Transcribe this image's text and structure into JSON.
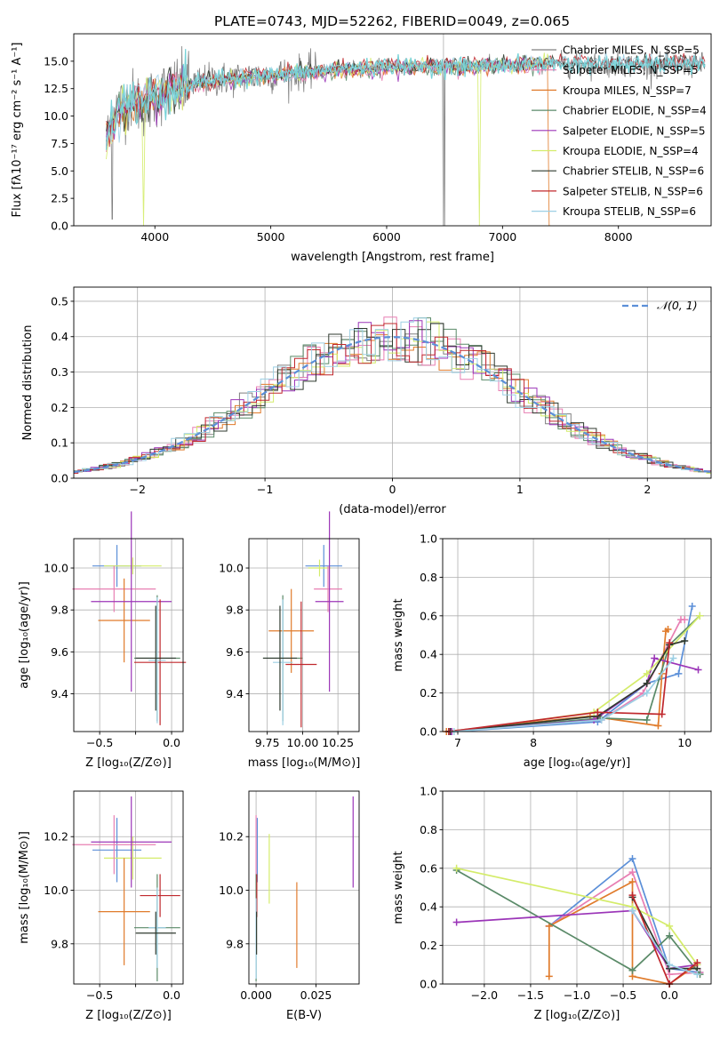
{
  "figure": {
    "title": "PLATE=0743, MJD=52262, FIBERID=0049, z=0.065"
  },
  "colors": [
    "#808080",
    "#e87fb3",
    "#e07b2b",
    "#5a8a68",
    "#9b35b8",
    "#d4ec6a",
    "#2f3a2f",
    "#c0282d",
    "#9ccfe4"
  ],
  "chart_data": [
    {
      "id": "spectrum",
      "type": "line",
      "xlabel": "wavelength [Angstrom, rest frame]",
      "ylabel": "Flux [fλ10⁻¹⁷ erg cm⁻² s⁻¹ A⁻¹]",
      "xlim": [
        3300,
        8800
      ],
      "ylim": [
        0,
        17.5
      ],
      "xticks": [
        4000,
        5000,
        6000,
        7000,
        8000
      ],
      "yticks": [
        0.0,
        2.5,
        5.0,
        7.5,
        10.0,
        12.5,
        15.0
      ],
      "grid": false,
      "legend_position": "top-right",
      "series": [
        {
          "name": "Chabrier MILES, N_SSP=5",
          "color": "#808080"
        },
        {
          "name": "Salpeter MILES, N_SSP=5",
          "color": "#e87fb3"
        },
        {
          "name": "Kroupa MILES, N_SSP=7",
          "color": "#e07b2b"
        },
        {
          "name": "Chabrier ELODIE, N_SSP=4",
          "color": "#5a8a68"
        },
        {
          "name": "Salpeter ELODIE, N_SSP=5",
          "color": "#9b35b8"
        },
        {
          "name": "Kroupa ELODIE, N_SSP=4",
          "color": "#d4ec6a"
        },
        {
          "name": "Chabrier STELIB, N_SSP=6",
          "color": "#2f3a2f"
        },
        {
          "name": "Salpeter STELIB, N_SSP=6",
          "color": "#c0282d"
        },
        {
          "name": "Kroupa STELIB, N_SSP=6",
          "color": "#9ccfe4"
        }
      ],
      "continuum": [
        [
          3580,
          7.5
        ],
        [
          3650,
          10.5
        ],
        [
          3800,
          11.5
        ],
        [
          3900,
          11.0
        ],
        [
          4000,
          11.8
        ],
        [
          4200,
          12.7
        ],
        [
          4500,
          13.3
        ],
        [
          5000,
          13.7
        ],
        [
          5500,
          14.2
        ],
        [
          6000,
          14.6
        ],
        [
          6500,
          14.5
        ],
        [
          7000,
          14.6
        ],
        [
          7500,
          14.7
        ],
        [
          8000,
          14.7
        ],
        [
          8300,
          14.6
        ],
        [
          8750,
          14.7
        ]
      ],
      "model_continuum": [
        [
          3580,
          7.5
        ],
        [
          3650,
          10.0
        ],
        [
          3800,
          11.3
        ],
        [
          4000,
          11.9
        ],
        [
          4300,
          12.8
        ],
        [
          4800,
          13.5
        ],
        [
          5500,
          14.1
        ],
        [
          6200,
          14.5
        ],
        [
          6800,
          14.5
        ],
        [
          7420,
          14.8
        ]
      ],
      "drops": [
        [
          3630,
          0.5
        ],
        [
          3900,
          0.0
        ],
        [
          6490,
          0.0
        ],
        [
          6500,
          0.0
        ],
        [
          6790,
          0.5
        ],
        [
          6800,
          0.0
        ],
        [
          7400,
          0.0
        ],
        [
          7420,
          0.0
        ]
      ]
    },
    {
      "id": "residuals",
      "type": "line",
      "xlabel": "(data-model)/error",
      "ylabel": "Normed distribution",
      "xlim": [
        -2.5,
        2.5
      ],
      "ylim": [
        0,
        0.54
      ],
      "xticks": [
        -2,
        -1,
        0,
        1,
        2
      ],
      "yticks": [
        0.0,
        0.1,
        0.2,
        0.3,
        0.4,
        0.5
      ],
      "grid": true,
      "legend_position": "top-right",
      "gaussian_label": "𝒩(0, 1)",
      "gaussian_color": "#5b8fd8",
      "bin_width": 0.1
    },
    {
      "id": "age-vs-Z",
      "type": "scatter",
      "xlabel": "Z [log₁₀(Z/Z⊙)]",
      "ylabel": "age  [log₁₀(age/yr)]",
      "xlim": [
        -0.68,
        0.08
      ],
      "ylim": [
        9.22,
        10.14
      ],
      "xticks": [
        -0.5,
        -0.25,
        0.0
      ],
      "xticklabels": [
        "−0.5",
        "",
        "0.0"
      ],
      "yticks": [
        9.4,
        9.6,
        9.8,
        10.0
      ],
      "grid": true,
      "points": [
        {
          "x": -0.38,
          "xerr": 0.17,
          "y": 10.01,
          "yerr": 0.1,
          "color": "#5b8fd8"
        },
        {
          "x": -0.27,
          "xerr": 0.2,
          "y": 10.01,
          "yerr": 0.04,
          "color": "#d4ec6a"
        },
        {
          "x": -0.4,
          "xerr": 0.29,
          "y": 9.9,
          "yerr": 0.11,
          "color": "#e87fb3"
        },
        {
          "x": -0.33,
          "xerr": 0.18,
          "y": 9.75,
          "yerr": 0.2,
          "color": "#e07b2b"
        },
        {
          "x": -0.28,
          "xerr": 0.28,
          "y": 9.84,
          "yerr": 0.43,
          "color": "#9b35b8"
        },
        {
          "x": -0.1,
          "xerr": 0.16,
          "y": 9.57,
          "yerr": 0.3,
          "color": "#5a8a68"
        },
        {
          "x": -0.08,
          "xerr": 0.18,
          "y": 9.55,
          "yerr": 0.3,
          "color": "#c0282d"
        },
        {
          "x": -0.1,
          "xerr": 0.06,
          "y": 9.56,
          "yerr": 0.3,
          "color": "#9ccfe4"
        },
        {
          "x": -0.11,
          "xerr": 0.14,
          "y": 9.57,
          "yerr": 0.25,
          "color": "#2f3a2f"
        }
      ]
    },
    {
      "id": "age-vs-mass",
      "type": "scatter",
      "xlabel": "mass [log₁₀(M/M⊙)]",
      "xlim": [
        9.62,
        10.4
      ],
      "ylim": [
        9.22,
        10.14
      ],
      "xticks": [
        9.75,
        10.0,
        10.25
      ],
      "xticklabels": [
        "9.75",
        "10.00",
        "10.25"
      ],
      "yticks": [
        9.4,
        9.6,
        9.8,
        10.0
      ],
      "grid": true,
      "points": [
        {
          "x": 10.15,
          "xerr": 0.13,
          "y": 10.01,
          "yerr": 0.1,
          "color": "#5b8fd8"
        },
        {
          "x": 10.12,
          "xerr": 0.08,
          "y": 10.0,
          "yerr": 0.04,
          "color": "#d4ec6a"
        },
        {
          "x": 10.18,
          "xerr": 0.1,
          "y": 9.9,
          "yerr": 0.11,
          "color": "#e87fb3"
        },
        {
          "x": 9.92,
          "xerr": 0.16,
          "y": 9.7,
          "yerr": 0.2,
          "color": "#e07b2b"
        },
        {
          "x": 10.19,
          "xerr": 0.1,
          "y": 9.84,
          "yerr": 0.43,
          "color": "#9b35b8"
        },
        {
          "x": 9.86,
          "xerr": 0.14,
          "y": 9.57,
          "yerr": 0.3,
          "color": "#5a8a68"
        },
        {
          "x": 9.99,
          "xerr": 0.11,
          "y": 9.54,
          "yerr": 0.3,
          "color": "#c0282d"
        },
        {
          "x": 9.86,
          "xerr": 0.07,
          "y": 9.55,
          "yerr": 0.3,
          "color": "#9ccfe4"
        },
        {
          "x": 9.84,
          "xerr": 0.12,
          "y": 9.57,
          "yerr": 0.25,
          "color": "#2f3a2f"
        }
      ]
    },
    {
      "id": "weight-vs-age",
      "type": "line",
      "xlabel": "age  [log₁₀(age/yr)]",
      "ylabel": "mass weight",
      "xlim": [
        6.8,
        10.35
      ],
      "ylim": [
        0,
        1.0
      ],
      "xticks": [
        7,
        8,
        9,
        10
      ],
      "yticks": [
        0.0,
        0.2,
        0.4,
        0.6,
        0.8,
        1.0
      ],
      "grid": true,
      "series": [
        {
          "color": "#5b8fd8",
          "x": [
            6.95,
            8.85,
            9.5,
            9.92,
            10.1
          ],
          "y": [
            0.0,
            0.05,
            0.25,
            0.3,
            0.65
          ]
        },
        {
          "color": "#e87fb3",
          "x": [
            6.9,
            8.9,
            9.45,
            9.95,
            10.0
          ],
          "y": [
            0.0,
            0.06,
            0.2,
            0.58,
            0.58
          ]
        },
        {
          "color": "#e07b2b",
          "x": [
            6.85,
            8.75,
            9.65,
            9.7,
            9.75,
            9.78
          ],
          "y": [
            0.0,
            0.08,
            0.03,
            0.3,
            0.52,
            0.53
          ]
        },
        {
          "color": "#5a8a68",
          "x": [
            6.88,
            8.9,
            9.5,
            9.8,
            10.2
          ],
          "y": [
            0.0,
            0.07,
            0.06,
            0.45,
            0.6
          ]
        },
        {
          "color": "#9b35b8",
          "x": [
            6.92,
            8.8,
            9.5,
            9.6,
            10.18
          ],
          "y": [
            0.0,
            0.06,
            0.25,
            0.38,
            0.32
          ]
        },
        {
          "color": "#d4ec6a",
          "x": [
            6.95,
            8.8,
            9.5,
            10.2
          ],
          "y": [
            0.0,
            0.1,
            0.3,
            0.6
          ]
        },
        {
          "color": "#2f3a2f",
          "x": [
            6.9,
            8.85,
            9.5,
            9.8,
            10.0
          ],
          "y": [
            0.0,
            0.08,
            0.25,
            0.45,
            0.47
          ]
        },
        {
          "color": "#c0282d",
          "x": [
            6.88,
            8.85,
            9.7,
            9.8
          ],
          "y": [
            0.0,
            0.1,
            0.09,
            0.46
          ]
        },
        {
          "color": "#9ccfe4",
          "x": [
            6.95,
            8.9,
            9.5,
            9.85
          ],
          "y": [
            0.0,
            0.06,
            0.2,
            0.38
          ]
        }
      ]
    },
    {
      "id": "mass-vs-Z",
      "type": "scatter",
      "xlabel": "Z [log₁₀(Z/Z⊙)]",
      "ylabel": "mass [log₁₀(M/M⊙)]",
      "xlim": [
        -0.68,
        0.08
      ],
      "ylim": [
        9.65,
        10.37
      ],
      "xticks": [
        -0.5,
        -0.25,
        0.0
      ],
      "xticklabels": [
        "−0.5",
        "",
        "0.0"
      ],
      "yticks": [
        9.8,
        10.0,
        10.2
      ],
      "grid": true,
      "points": [
        {
          "x": -0.38,
          "xerr": 0.17,
          "y": 10.15,
          "yerr": 0.12,
          "color": "#5b8fd8"
        },
        {
          "x": -0.27,
          "xerr": 0.2,
          "y": 10.12,
          "yerr": 0.08,
          "color": "#d4ec6a"
        },
        {
          "x": -0.4,
          "xerr": 0.29,
          "y": 10.17,
          "yerr": 0.11,
          "color": "#e87fb3"
        },
        {
          "x": -0.33,
          "xerr": 0.18,
          "y": 9.92,
          "yerr": 0.2,
          "color": "#e07b2b"
        },
        {
          "x": -0.28,
          "xerr": 0.28,
          "y": 10.18,
          "yerr": 0.17,
          "color": "#9b35b8"
        },
        {
          "x": -0.1,
          "xerr": 0.16,
          "y": 9.86,
          "yerr": 0.2,
          "color": "#5a8a68"
        },
        {
          "x": -0.08,
          "xerr": 0.14,
          "y": 9.98,
          "yerr": 0.08,
          "color": "#c0282d"
        },
        {
          "x": -0.1,
          "xerr": 0.06,
          "y": 9.86,
          "yerr": 0.15,
          "color": "#9ccfe4"
        },
        {
          "x": -0.11,
          "xerr": 0.14,
          "y": 9.84,
          "yerr": 0.08,
          "color": "#2f3a2f"
        }
      ]
    },
    {
      "id": "mass-vs-ebv",
      "type": "scatter",
      "xlabel": "E(B-V)",
      "xlim": [
        -0.003,
        0.043
      ],
      "ylim": [
        9.65,
        10.37
      ],
      "xticks": [
        0.0,
        0.025
      ],
      "xticklabels": [
        "0.000",
        "0.025"
      ],
      "yticks": [
        9.8,
        10.0,
        10.2
      ],
      "grid": true,
      "points": [
        {
          "x": 0.0005,
          "xerr": 0,
          "y": 10.15,
          "yerr": 0.12,
          "color": "#5b8fd8"
        },
        {
          "x": 0.0055,
          "xerr": 0,
          "y": 10.08,
          "yerr": 0.13,
          "color": "#d4ec6a"
        },
        {
          "x": 0.0,
          "xerr": 0,
          "y": 10.17,
          "yerr": 0.11,
          "color": "#e87fb3"
        },
        {
          "x": 0.017,
          "xerr": 0,
          "y": 9.87,
          "yerr": 0.16,
          "color": "#e07b2b"
        },
        {
          "x": 0.0405,
          "xerr": 0,
          "y": 10.18,
          "yerr": 0.17,
          "color": "#9b35b8"
        },
        {
          "x": 0.0,
          "xerr": 0,
          "y": 9.86,
          "yerr": 0.2,
          "color": "#5a8a68"
        },
        {
          "x": 0.0003,
          "xerr": 0,
          "y": 9.98,
          "yerr": 0.08,
          "color": "#c0282d"
        },
        {
          "x": 0.0,
          "xerr": 0,
          "y": 9.82,
          "yerr": 0.15,
          "color": "#9ccfe4"
        },
        {
          "x": 0.0002,
          "xerr": 0,
          "y": 9.84,
          "yerr": 0.08,
          "color": "#2f3a2f"
        }
      ]
    },
    {
      "id": "weight-vs-Z",
      "type": "line",
      "xlabel": "Z [log₁₀(Z/Z⊙)]",
      "ylabel": "mass weight",
      "xlim": [
        -2.45,
        0.45
      ],
      "ylim": [
        0,
        1.0
      ],
      "xticks": [
        -2.0,
        -1.5,
        -1.0,
        -0.5,
        0.0
      ],
      "xticklabels": [
        "−2.0",
        "−1.5",
        "−1.0",
        "−0.5",
        "0.0"
      ],
      "yticks": [
        0.0,
        0.2,
        0.4,
        0.6,
        0.8,
        1.0
      ],
      "grid": true,
      "series": [
        {
          "color": "#5b8fd8",
          "x": [
            -1.3,
            -0.4,
            0.0,
            0.33
          ],
          "y": [
            0.3,
            0.65,
            0.08,
            0.06
          ]
        },
        {
          "color": "#e87fb3",
          "x": [
            -1.3,
            -0.4,
            0.0,
            0.33
          ],
          "y": [
            0.3,
            0.58,
            0.05,
            0.06
          ]
        },
        {
          "color": "#e07b2b",
          "x": [
            -1.3,
            -1.3,
            -0.4,
            -0.4,
            0.0,
            0.3
          ],
          "y": [
            0.04,
            0.3,
            0.53,
            0.04,
            0.0,
            0.1
          ]
        },
        {
          "color": "#5a8a68",
          "x": [
            -2.3,
            -0.4,
            0.0,
            0.33
          ],
          "y": [
            0.59,
            0.07,
            0.25,
            0.05
          ]
        },
        {
          "color": "#9b35b8",
          "x": [
            -2.3,
            -0.4,
            0.0,
            0.3
          ],
          "y": [
            0.32,
            0.38,
            0.08,
            0.1
          ]
        },
        {
          "color": "#d4ec6a",
          "x": [
            -2.3,
            -0.4,
            0.0,
            0.3
          ],
          "y": [
            0.6,
            0.4,
            0.3,
            0.1
          ]
        },
        {
          "color": "#2f3a2f",
          "x": [
            -0.4,
            0.0,
            0.3
          ],
          "y": [
            0.45,
            0.08,
            0.08
          ]
        },
        {
          "color": "#c0282d",
          "x": [
            -0.4,
            0.0,
            0.3
          ],
          "y": [
            0.46,
            0.0,
            0.11
          ]
        },
        {
          "color": "#9ccfe4",
          "x": [
            -0.4,
            0.0,
            0.3
          ],
          "y": [
            0.38,
            0.1,
            0.05
          ]
        }
      ]
    }
  ]
}
